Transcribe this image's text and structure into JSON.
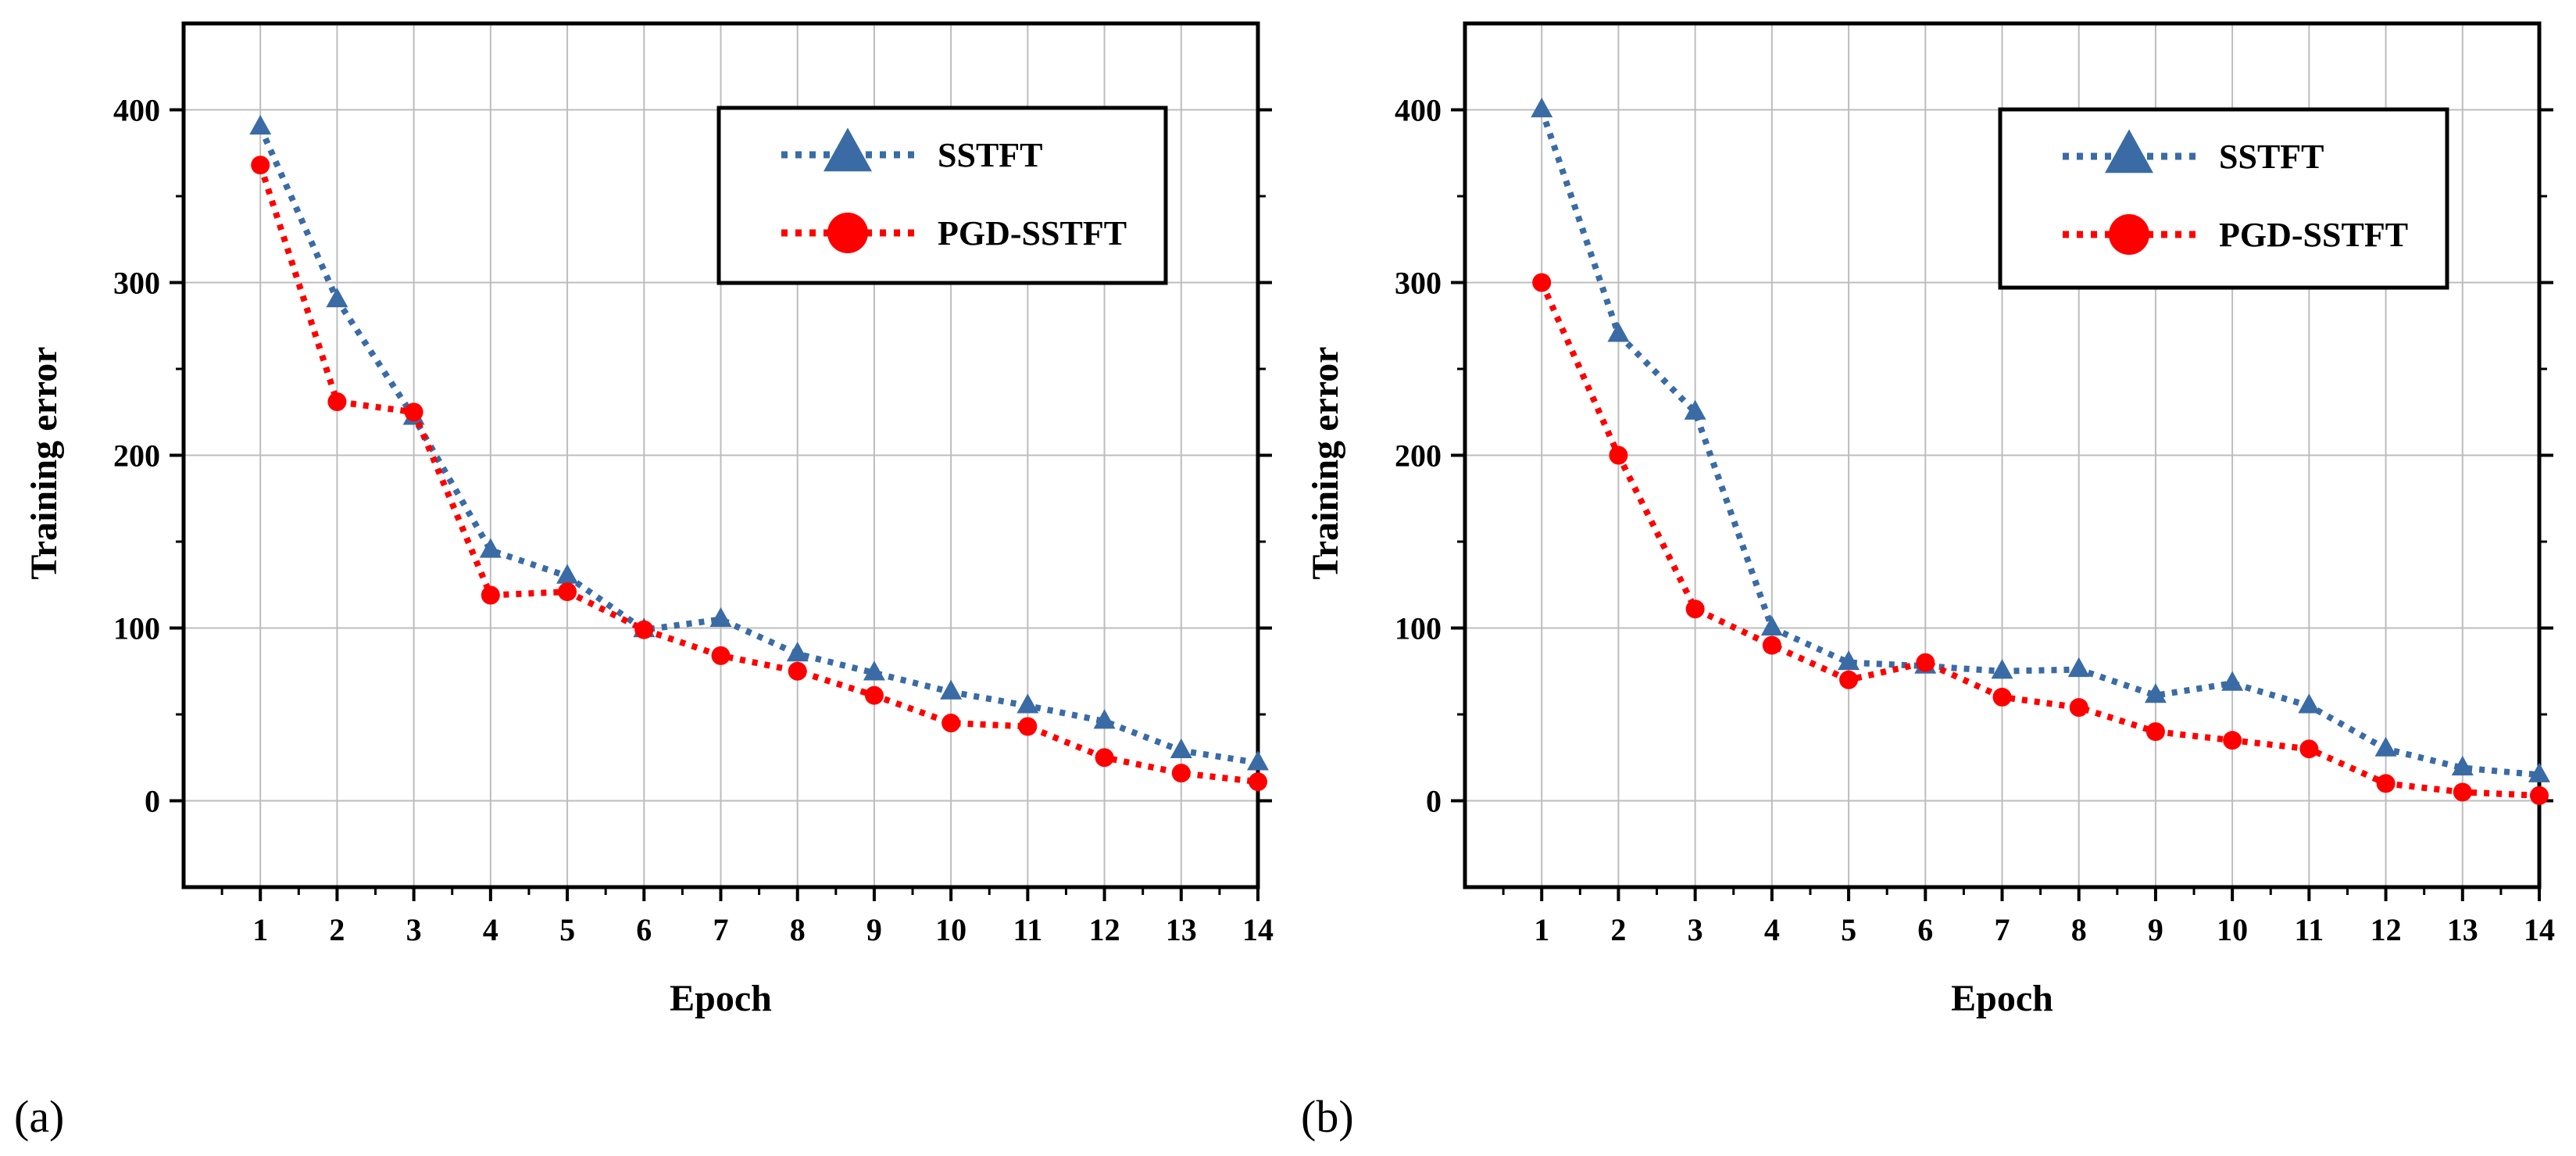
{
  "chart_data": [
    {
      "type": "line",
      "panel_label": "(a)",
      "xlabel": "Epoch",
      "ylabel": "Training error",
      "x": [
        1,
        2,
        3,
        4,
        5,
        6,
        7,
        8,
        9,
        10,
        11,
        12,
        13,
        14
      ],
      "xlim": [
        0,
        14
      ],
      "ylim": [
        -50,
        450
      ],
      "yticks": [
        0,
        100,
        200,
        300,
        400
      ],
      "grid": true,
      "legend_position": "top-right",
      "series": [
        {
          "name": "SSTFT",
          "marker": "triangle",
          "color": "#3A6BA5",
          "values": [
            390,
            290,
            222,
            145,
            130,
            99,
            105,
            85,
            74,
            63,
            55,
            46,
            29,
            22
          ]
        },
        {
          "name": "PGD-SSTFT",
          "marker": "circle",
          "color": "#FF0000",
          "values": [
            368,
            231,
            225,
            119,
            121,
            99,
            84,
            75,
            61,
            45,
            43,
            25,
            16,
            11
          ]
        }
      ]
    },
    {
      "type": "line",
      "panel_label": "(b)",
      "xlabel": "Epoch",
      "ylabel": "Training error",
      "x": [
        1,
        2,
        3,
        4,
        5,
        6,
        7,
        8,
        9,
        10,
        11,
        12,
        13,
        14
      ],
      "xlim": [
        0,
        14
      ],
      "ylim": [
        -50,
        450
      ],
      "yticks": [
        0,
        100,
        200,
        300,
        400
      ],
      "grid": true,
      "legend_position": "top-right",
      "series": [
        {
          "name": "SSTFT",
          "marker": "triangle",
          "color": "#3A6BA5",
          "values": [
            400,
            270,
            225,
            100,
            80,
            78,
            75,
            76,
            61,
            68,
            55,
            30,
            19,
            15
          ]
        },
        {
          "name": "PGD-SSTFT",
          "marker": "circle",
          "color": "#FF0000",
          "values": [
            300,
            200,
            111,
            90,
            70,
            80,
            60,
            54,
            40,
            35,
            30,
            10,
            5,
            3
          ]
        }
      ]
    }
  ]
}
